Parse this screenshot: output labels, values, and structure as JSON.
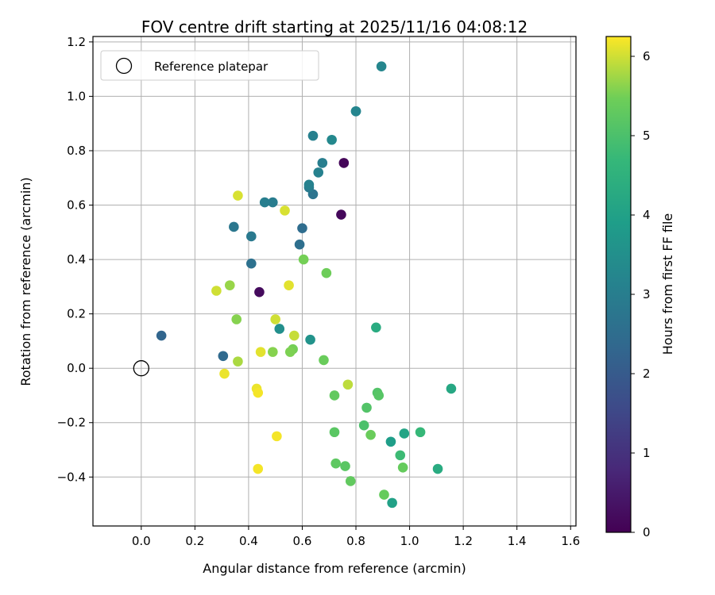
{
  "chart_data": {
    "type": "scatter",
    "title": "FOV centre drift starting at 2025/11/16 04:08:12",
    "xlabel": "Angular distance from reference (arcmin)",
    "ylabel": "Rotation from reference (arcmin)",
    "xlim": [
      -0.18,
      1.62
    ],
    "ylim": [
      -0.58,
      1.22
    ],
    "xticks": [
      "0.0",
      "0.2",
      "0.4",
      "0.6",
      "0.8",
      "1.0",
      "1.2",
      "1.4",
      "1.6"
    ],
    "xtick_values": [
      0.0,
      0.2,
      0.4,
      0.6,
      0.8,
      1.0,
      1.2,
      1.4,
      1.6
    ],
    "yticks": [
      "−0.4",
      "−0.2",
      "0.0",
      "0.2",
      "0.4",
      "0.6",
      "0.8",
      "1.0",
      "1.2"
    ],
    "ytick_values": [
      -0.4,
      -0.2,
      0.0,
      0.2,
      0.4,
      0.6,
      0.8,
      1.0,
      1.2
    ],
    "grid": true,
    "legend": {
      "label": "Reference platepar",
      "placement": "top-left"
    },
    "reference_point": {
      "x": 0.0,
      "y": 0.0
    },
    "colorbar": {
      "label": "Hours from first FF file",
      "range": [
        0,
        6.25
      ],
      "ticks": [
        "0",
        "1",
        "2",
        "3",
        "4",
        "5",
        "6"
      ],
      "tick_values": [
        0,
        1,
        2,
        3,
        4,
        5,
        6
      ],
      "colormap": "viridis"
    },
    "points": [
      {
        "x": 0.755,
        "y": 0.755,
        "h": 0.1
      },
      {
        "x": 0.745,
        "y": 0.565,
        "h": 0.15
      },
      {
        "x": 0.44,
        "y": 0.28,
        "h": 0.2
      },
      {
        "x": 0.075,
        "y": 0.12,
        "h": 2.3
      },
      {
        "x": 0.305,
        "y": 0.045,
        "h": 2.4
      },
      {
        "x": 0.6,
        "y": 0.515,
        "h": 2.5
      },
      {
        "x": 0.59,
        "y": 0.455,
        "h": 2.55
      },
      {
        "x": 0.41,
        "y": 0.385,
        "h": 2.6
      },
      {
        "x": 0.64,
        "y": 0.64,
        "h": 2.7
      },
      {
        "x": 0.345,
        "y": 0.52,
        "h": 2.8
      },
      {
        "x": 0.41,
        "y": 0.485,
        "h": 2.85
      },
      {
        "x": 0.625,
        "y": 0.665,
        "h": 2.9
      },
      {
        "x": 0.49,
        "y": 0.61,
        "h": 2.95
      },
      {
        "x": 0.675,
        "y": 0.755,
        "h": 3.0
      },
      {
        "x": 0.46,
        "y": 0.61,
        "h": 3.0
      },
      {
        "x": 0.64,
        "y": 0.855,
        "h": 3.05
      },
      {
        "x": 0.66,
        "y": 0.72,
        "h": 3.1
      },
      {
        "x": 0.625,
        "y": 0.675,
        "h": 3.1
      },
      {
        "x": 0.8,
        "y": 0.945,
        "h": 3.15
      },
      {
        "x": 0.8,
        "y": 0.945,
        "h": 3.2
      },
      {
        "x": 0.895,
        "y": 1.11,
        "h": 3.25
      },
      {
        "x": 0.71,
        "y": 0.84,
        "h": 3.3
      },
      {
        "x": 0.515,
        "y": 0.145,
        "h": 3.5
      },
      {
        "x": 0.63,
        "y": 0.105,
        "h": 3.6
      },
      {
        "x": 0.93,
        "y": -0.27,
        "h": 3.9
      },
      {
        "x": 0.935,
        "y": -0.495,
        "h": 4.0
      },
      {
        "x": 0.98,
        "y": -0.24,
        "h": 4.1
      },
      {
        "x": 1.155,
        "y": -0.075,
        "h": 4.2
      },
      {
        "x": 0.875,
        "y": 0.15,
        "h": 4.3
      },
      {
        "x": 1.105,
        "y": -0.37,
        "h": 4.3
      },
      {
        "x": 1.04,
        "y": -0.235,
        "h": 4.7
      },
      {
        "x": 0.965,
        "y": -0.32,
        "h": 4.8
      },
      {
        "x": 0.83,
        "y": -0.21,
        "h": 5.0
      },
      {
        "x": 0.84,
        "y": -0.145,
        "h": 5.1
      },
      {
        "x": 0.88,
        "y": -0.09,
        "h": 5.1
      },
      {
        "x": 0.885,
        "y": -0.1,
        "h": 5.15
      },
      {
        "x": 0.72,
        "y": -0.235,
        "h": 5.2
      },
      {
        "x": 0.76,
        "y": -0.36,
        "h": 5.2
      },
      {
        "x": 0.725,
        "y": -0.35,
        "h": 5.25
      },
      {
        "x": 0.78,
        "y": -0.415,
        "h": 5.3
      },
      {
        "x": 0.905,
        "y": -0.465,
        "h": 5.35
      },
      {
        "x": 0.975,
        "y": -0.365,
        "h": 5.35
      },
      {
        "x": 0.72,
        "y": -0.1,
        "h": 5.3
      },
      {
        "x": 0.855,
        "y": -0.245,
        "h": 5.4
      },
      {
        "x": 0.68,
        "y": 0.03,
        "h": 5.4
      },
      {
        "x": 0.69,
        "y": 0.35,
        "h": 5.45
      },
      {
        "x": 0.605,
        "y": 0.4,
        "h": 5.5
      },
      {
        "x": 0.565,
        "y": 0.07,
        "h": 5.5
      },
      {
        "x": 0.555,
        "y": 0.06,
        "h": 5.55
      },
      {
        "x": 0.49,
        "y": 0.06,
        "h": 5.6
      },
      {
        "x": 0.355,
        "y": 0.18,
        "h": 5.6
      },
      {
        "x": 0.33,
        "y": 0.305,
        "h": 5.7
      },
      {
        "x": 0.36,
        "y": 0.025,
        "h": 5.8
      },
      {
        "x": 0.77,
        "y": -0.06,
        "h": 5.9
      },
      {
        "x": 0.57,
        "y": 0.12,
        "h": 5.95
      },
      {
        "x": 0.5,
        "y": 0.18,
        "h": 6.0
      },
      {
        "x": 0.28,
        "y": 0.285,
        "h": 6.0
      },
      {
        "x": 0.535,
        "y": 0.58,
        "h": 6.05
      },
      {
        "x": 0.36,
        "y": 0.635,
        "h": 6.05
      },
      {
        "x": 0.55,
        "y": 0.305,
        "h": 6.1
      },
      {
        "x": 0.445,
        "y": 0.06,
        "h": 6.1
      },
      {
        "x": 0.31,
        "y": -0.02,
        "h": 6.15
      },
      {
        "x": 0.43,
        "y": -0.075,
        "h": 6.15
      },
      {
        "x": 0.435,
        "y": -0.09,
        "h": 6.2
      },
      {
        "x": 0.505,
        "y": -0.25,
        "h": 6.2
      },
      {
        "x": 0.435,
        "y": -0.37,
        "h": 6.2
      }
    ]
  }
}
